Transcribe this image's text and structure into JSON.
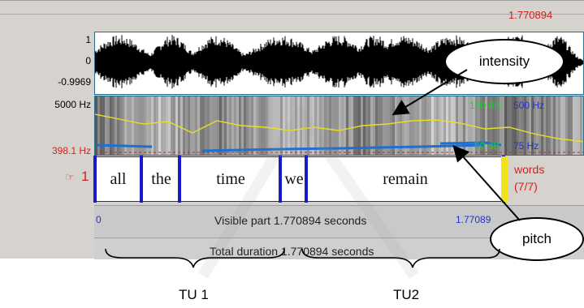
{
  "praat": {
    "selection_end_time": "1.770894",
    "waveform": {
      "y_max": "1",
      "y_zero": "0",
      "y_min": "-0.9969"
    },
    "spectrogram": {
      "freq_top": "5000 Hz",
      "intensity_top": "100 dB",
      "pitch_top": "500 Hz",
      "pitch_bottom": "75 Hz",
      "intensity_bottom": "50 dB",
      "cursor_pitch": "398.1 Hz"
    },
    "tier": {
      "number": "1",
      "name": "words",
      "count": "(7/7)",
      "words": [
        "all",
        "the",
        "time",
        "we",
        "remain"
      ]
    },
    "visible_start": "0",
    "visible_part": "Visible part 1.770894 seconds",
    "visible_end": "1.77089",
    "total_duration": "Total duration 1.770894 seconds"
  },
  "annotations": {
    "intensity": "intensity",
    "pitch": "pitch",
    "tu1": "TU 1",
    "tu2": "TU2"
  },
  "colors": {
    "axis_red": "#d22020",
    "axis_blue": "#2233cc",
    "intensity_green": "#22cc22",
    "pitch_track": "#1e6fd0",
    "intensity_track": "#e8e020",
    "boundary": "#1a1acc"
  }
}
